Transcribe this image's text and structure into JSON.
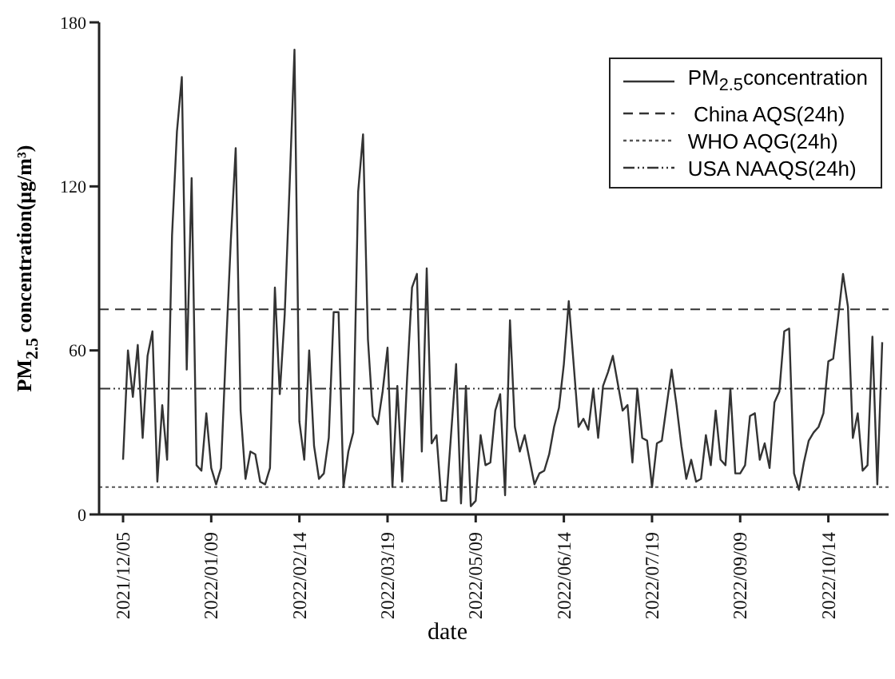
{
  "chart_data": {
    "type": "line",
    "xlabel": "date",
    "ylabel": "PM$_{2.5}$ concentration(μg/m³)",
    "categories": [
      "2021/12/05",
      null,
      null,
      null,
      null,
      null,
      null,
      null,
      null,
      null,
      null,
      null,
      null,
      null,
      null,
      null,
      null,
      null,
      "2022/01/09",
      null,
      null,
      null,
      null,
      null,
      null,
      null,
      null,
      null,
      null,
      null,
      null,
      null,
      null,
      null,
      null,
      null,
      "2022/02/14",
      null,
      null,
      null,
      null,
      null,
      null,
      null,
      null,
      null,
      null,
      null,
      null,
      null,
      null,
      null,
      null,
      null,
      "2022/03/19",
      null,
      null,
      null,
      null,
      null,
      null,
      null,
      null,
      null,
      null,
      null,
      null,
      null,
      null,
      null,
      null,
      null,
      "2022/05/09",
      null,
      null,
      null,
      null,
      null,
      null,
      null,
      null,
      null,
      null,
      null,
      null,
      null,
      null,
      null,
      null,
      null,
      "2022/06/14",
      null,
      null,
      null,
      null,
      null,
      null,
      null,
      null,
      null,
      null,
      null,
      null,
      null,
      null,
      null,
      null,
      null,
      "2022/07/19",
      null,
      null,
      null,
      null,
      null,
      null,
      null,
      null,
      null,
      null,
      null,
      null,
      null,
      null,
      null,
      null,
      null,
      "2022/09/09",
      null,
      null,
      null,
      null,
      null,
      null,
      null,
      null,
      null,
      null,
      null,
      null,
      null,
      null,
      null,
      null,
      null,
      "2022/10/14",
      null,
      null,
      null,
      null,
      null,
      null,
      null,
      null,
      null,
      null,
      null
    ],
    "series": [
      {
        "name": "PM$_{2.5}$concentration",
        "color": "#333333",
        "values": [
          20,
          60,
          43,
          62,
          28,
          58,
          67,
          12,
          40,
          20,
          102,
          140,
          160,
          53,
          123,
          18,
          16,
          37,
          17,
          11,
          17,
          60,
          100,
          134,
          38,
          13,
          23,
          22,
          12,
          11,
          17,
          83,
          44,
          73,
          120,
          170,
          34,
          20,
          60,
          25,
          13,
          15,
          28,
          74,
          74,
          10,
          23,
          30,
          118,
          139,
          64,
          36,
          33,
          45,
          61,
          10,
          47,
          12,
          50,
          83,
          88,
          23,
          90,
          26,
          29,
          5,
          5,
          30,
          55,
          4,
          47,
          3,
          5,
          29,
          18,
          19,
          38,
          44,
          7,
          71,
          32,
          23,
          29,
          20,
          11,
          15,
          16,
          22,
          32,
          39,
          55,
          78,
          55,
          32,
          35,
          31,
          46,
          28,
          47,
          52,
          58,
          48,
          38,
          40,
          19,
          46,
          28,
          27,
          10,
          26,
          27,
          40,
          53,
          40,
          25,
          13,
          20,
          12,
          13,
          29,
          18,
          38,
          20,
          18,
          46,
          15,
          15,
          18,
          36,
          37,
          20,
          26,
          17,
          41,
          45,
          67,
          68,
          15,
          9,
          19,
          27,
          30,
          32,
          37,
          56,
          57,
          72,
          88,
          76,
          28,
          37,
          16,
          18,
          65,
          11,
          63
        ]
      }
    ],
    "ylim": [
      0,
      180
    ],
    "yticks": [
      0,
      60,
      120,
      180
    ],
    "ref_lines": [
      {
        "axis": "y",
        "value": 75,
        "label": " China AQS(24h)",
        "color": "#333333",
        "line_style": "dashed"
      },
      {
        "axis": "y",
        "value": 10,
        "label": "WHO AQG(24h)",
        "color": "#555555",
        "line_style": "dotted"
      },
      {
        "axis": "y",
        "value": 46,
        "label": "USA NAAQS(24h)",
        "color": "#333333",
        "line_style": "dashdot"
      }
    ],
    "legend": "top right",
    "grid": false,
    "marker": "none",
    "line_style": "solid"
  }
}
